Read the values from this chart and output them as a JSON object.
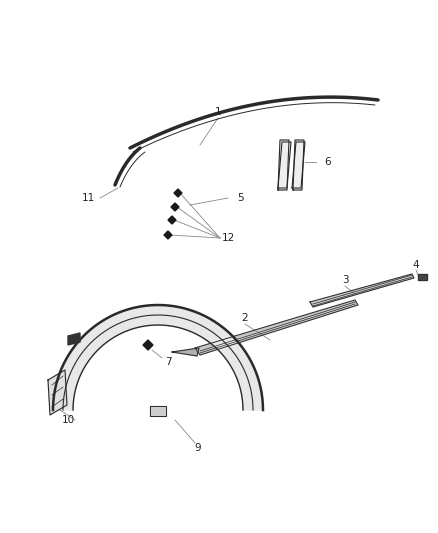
{
  "bg_color": "#ffffff",
  "line_color": "#2a2a2a",
  "fig_width": 4.38,
  "fig_height": 5.33,
  "dpi": 100,
  "ann_color": "#888888",
  "label_color": "#222222",
  "fs": 7.5,
  "ann_lw": 0.6
}
